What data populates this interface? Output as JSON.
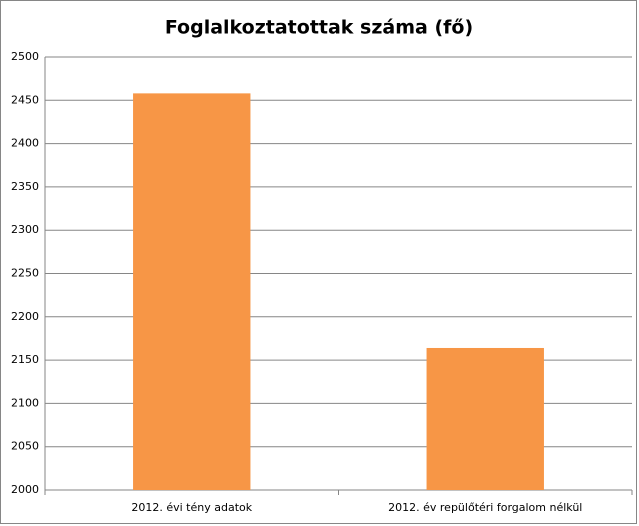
{
  "chart_data": {
    "type": "bar",
    "title": "Foglalkoztatottak száma (fő)",
    "categories": [
      "2012. évi tény adatok",
      "2012. év repülőtéri forgalom nélkül"
    ],
    "values": [
      2458,
      2164
    ],
    "color": "#f79646",
    "ylim": [
      2000,
      2500
    ],
    "yticks": [
      2000,
      2050,
      2100,
      2150,
      2200,
      2250,
      2300,
      2350,
      2400,
      2450,
      2500
    ],
    "grid": true
  }
}
